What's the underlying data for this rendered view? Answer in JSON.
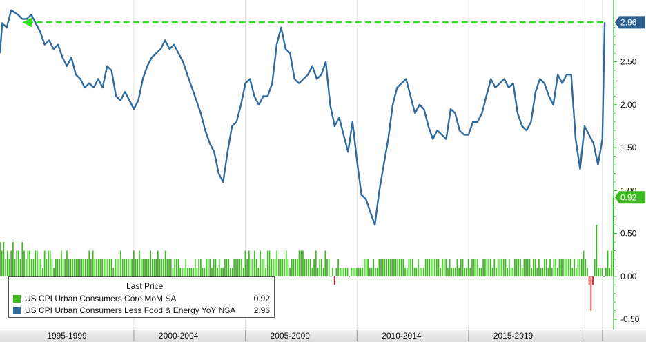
{
  "chart_data": {
    "type": "line+bar",
    "y_axis": {
      "ticks": [
        "-0.50",
        "0.00",
        "0.50",
        "1.00",
        "1.50",
        "2.00",
        "2.50"
      ],
      "tick_values": [
        -0.5,
        0.0,
        0.5,
        1.0,
        1.5,
        2.0,
        2.5
      ],
      "range": [
        -0.62,
        3.22
      ]
    },
    "x_axis": {
      "labels": [
        "1995-1999",
        "2000-2004",
        "2005-2009",
        "2010-2014",
        "2015-2019"
      ],
      "range": [
        1994.0,
        2021.5
      ]
    },
    "legend": {
      "header": "Last Price",
      "placement": "bottom-left"
    },
    "series": [
      {
        "name": "US CPI Urban Consumers Core MoM SA",
        "type": "bar",
        "color": "#3cbc1e",
        "last_value": "0.92",
        "start": 1994.0,
        "step": 0.0833,
        "values": [
          0.4,
          0.3,
          0.4,
          0.2,
          0.3,
          0.2,
          0.3,
          0.4,
          0.2,
          0.3,
          0.3,
          0.2,
          0.4,
          0.3,
          0.2,
          0.3,
          0.3,
          0.2,
          0.2,
          0.3,
          0.3,
          0.2,
          0.2,
          0.1,
          0.3,
          0.2,
          0.3,
          0.3,
          0.2,
          0.1,
          0.2,
          0.2,
          0.2,
          0.3,
          0.2,
          0.2,
          0.3,
          0.2,
          0.2,
          0.2,
          0.2,
          0.2,
          0.2,
          0.2,
          0.2,
          0.2,
          0.2,
          0.2,
          0.3,
          0.2,
          0.3,
          0.2,
          0.2,
          0.2,
          0.2,
          0.2,
          0.2,
          0.2,
          0.2,
          0.2,
          0.2,
          0.1,
          0.2,
          0.2,
          0.2,
          0.3,
          0.2,
          0.2,
          0.2,
          0.2,
          0.2,
          0.2,
          0.3,
          0.2,
          0.2,
          0.3,
          0.2,
          0.2,
          0.2,
          0.2,
          0.2,
          0.3,
          0.2,
          0.2,
          0.2,
          0.3,
          0.2,
          0.2,
          0.2,
          0.3,
          0.2,
          0.2,
          0.2,
          0.1,
          0.2,
          0.2,
          0.2,
          0.1,
          0.1,
          0.1,
          0.2,
          0.1,
          0.1,
          0.1,
          0.1,
          0.2,
          0.1,
          0.2,
          0.2,
          0.1,
          0.1,
          0.2,
          0.2,
          0.2,
          0.1,
          0.2,
          0.2,
          0.1,
          0.2,
          0.1,
          0.1,
          0.2,
          0.2,
          0.2,
          0.1,
          0.1,
          0.2,
          0.2,
          0.2,
          0.2,
          0.2,
          0.1,
          0.3,
          0.2,
          0.3,
          0.2,
          0.2,
          0.3,
          0.2,
          0.1,
          0.3,
          0.2,
          0.2,
          0.1,
          0.3,
          0.3,
          0.2,
          0.2,
          0.2,
          0.3,
          0.2,
          0.2,
          0.2,
          0.2,
          0.3,
          0.2,
          0.1,
          0.2,
          0.2,
          0.2,
          0.2,
          0.3,
          0.3,
          0.3,
          0.2,
          0.2,
          0.2,
          0.2,
          0.1,
          0.2,
          0.3,
          0.1,
          0.2,
          0.2,
          0.1,
          0.3,
          0.2,
          0.2,
          0.0,
          0.1,
          -0.1,
          0.1,
          0.2,
          0.1,
          0.1,
          0.1,
          0.1,
          0.1,
          0.0,
          0.1,
          0.1,
          0.1,
          0.1,
          0.1,
          0.1,
          0.1,
          0.2,
          0.2,
          0.2,
          0.1,
          0.1,
          0.2,
          0.1,
          0.1,
          0.2,
          0.2,
          0.2,
          0.2,
          0.2,
          0.2,
          0.2,
          0.2,
          0.2,
          0.2,
          0.2,
          0.2,
          0.2,
          0.2,
          0.1,
          0.1,
          0.2,
          0.2,
          0.2,
          0.1,
          0.1,
          0.2,
          0.1,
          0.1,
          0.1,
          0.2,
          0.2,
          0.2,
          0.2,
          0.2,
          0.2,
          0.2,
          0.2,
          0.1,
          0.2,
          0.2,
          0.2,
          0.1,
          0.2,
          0.1,
          0.1,
          0.1,
          0.2,
          0.1,
          0.2,
          0.2,
          0.1,
          0.1,
          0.2,
          0.1,
          0.2,
          0.2,
          0.2,
          0.2,
          0.1,
          0.1,
          0.2,
          0.2,
          0.2,
          0.2,
          0.2,
          0.1,
          0.2,
          0.1,
          0.2,
          0.2,
          0.2,
          0.2,
          0.2,
          0.1,
          0.2,
          0.1,
          0.1,
          0.2,
          0.2,
          0.2,
          0.2,
          0.1,
          0.2,
          0.2,
          0.2,
          0.2,
          0.1,
          0.2,
          0.2,
          0.1,
          0.2,
          0.1,
          0.1,
          0.2,
          0.2,
          0.1,
          0.2,
          0.1,
          0.2,
          0.2,
          0.1,
          0.2,
          0.2,
          0.2,
          0.2,
          0.2,
          0.2,
          0.2,
          0.1,
          0.2,
          0.1,
          0.2,
          0.2,
          0.2,
          0.3,
          0.2,
          0.1,
          -0.1,
          -0.4,
          -0.1,
          0.2,
          0.6,
          0.1,
          0.1,
          0.1,
          0.0,
          0.1,
          0.3,
          0.1,
          0.3,
          0.92
        ]
      },
      {
        "name": "US CPI Urban Consumers Less Food & Energy YoY NSA",
        "type": "line",
        "color": "#2f6a9e",
        "last_value": "2.96",
        "points": [
          [
            1994.0,
            2.6
          ],
          [
            1994.1,
            2.95
          ],
          [
            1994.3,
            2.9
          ],
          [
            1994.5,
            3.1
          ],
          [
            1994.8,
            3.05
          ],
          [
            1995.0,
            3.0
          ],
          [
            1995.2,
            3.0
          ],
          [
            1995.4,
            3.05
          ],
          [
            1995.6,
            2.95
          ],
          [
            1995.8,
            2.85
          ],
          [
            1996.0,
            2.7
          ],
          [
            1996.2,
            2.75
          ],
          [
            1996.4,
            2.65
          ],
          [
            1996.6,
            2.7
          ],
          [
            1996.8,
            2.55
          ],
          [
            1997.0,
            2.45
          ],
          [
            1997.2,
            2.55
          ],
          [
            1997.4,
            2.35
          ],
          [
            1997.6,
            2.3
          ],
          [
            1997.8,
            2.2
          ],
          [
            1998.0,
            2.25
          ],
          [
            1998.2,
            2.2
          ],
          [
            1998.4,
            2.3
          ],
          [
            1998.6,
            2.2
          ],
          [
            1998.8,
            2.45
          ],
          [
            1999.0,
            2.4
          ],
          [
            1999.2,
            2.1
          ],
          [
            1999.4,
            2.05
          ],
          [
            1999.6,
            2.15
          ],
          [
            1999.8,
            2.05
          ],
          [
            2000.0,
            1.95
          ],
          [
            2000.2,
            2.05
          ],
          [
            2000.4,
            2.3
          ],
          [
            2000.6,
            2.45
          ],
          [
            2000.8,
            2.55
          ],
          [
            2001.0,
            2.6
          ],
          [
            2001.2,
            2.65
          ],
          [
            2001.4,
            2.75
          ],
          [
            2001.6,
            2.65
          ],
          [
            2001.8,
            2.7
          ],
          [
            2002.0,
            2.6
          ],
          [
            2002.2,
            2.5
          ],
          [
            2002.4,
            2.35
          ],
          [
            2002.6,
            2.2
          ],
          [
            2002.8,
            2.05
          ],
          [
            2003.0,
            1.9
          ],
          [
            2003.2,
            1.7
          ],
          [
            2003.4,
            1.55
          ],
          [
            2003.6,
            1.45
          ],
          [
            2003.8,
            1.2
          ],
          [
            2004.0,
            1.1
          ],
          [
            2004.2,
            1.45
          ],
          [
            2004.4,
            1.75
          ],
          [
            2004.6,
            1.8
          ],
          [
            2004.8,
            2.0
          ],
          [
            2005.0,
            2.25
          ],
          [
            2005.2,
            2.3
          ],
          [
            2005.4,
            2.1
          ],
          [
            2005.6,
            2.0
          ],
          [
            2005.8,
            2.1
          ],
          [
            2006.0,
            2.1
          ],
          [
            2006.2,
            2.25
          ],
          [
            2006.4,
            2.7
          ],
          [
            2006.6,
            2.9
          ],
          [
            2006.8,
            2.65
          ],
          [
            2007.0,
            2.6
          ],
          [
            2007.2,
            2.3
          ],
          [
            2007.4,
            2.25
          ],
          [
            2007.6,
            2.3
          ],
          [
            2007.8,
            2.35
          ],
          [
            2008.0,
            2.45
          ],
          [
            2008.2,
            2.3
          ],
          [
            2008.4,
            2.35
          ],
          [
            2008.6,
            2.5
          ],
          [
            2008.8,
            2.0
          ],
          [
            2009.0,
            1.75
          ],
          [
            2009.2,
            1.85
          ],
          [
            2009.4,
            1.65
          ],
          [
            2009.6,
            1.45
          ],
          [
            2009.8,
            1.8
          ],
          [
            2010.0,
            1.35
          ],
          [
            2010.2,
            0.95
          ],
          [
            2010.4,
            0.9
          ],
          [
            2010.6,
            0.75
          ],
          [
            2010.8,
            0.6
          ],
          [
            2011.0,
            1.0
          ],
          [
            2011.2,
            1.3
          ],
          [
            2011.4,
            1.6
          ],
          [
            2011.6,
            2.0
          ],
          [
            2011.8,
            2.2
          ],
          [
            2012.0,
            2.25
          ],
          [
            2012.2,
            2.3
          ],
          [
            2012.4,
            2.1
          ],
          [
            2012.6,
            1.9
          ],
          [
            2012.8,
            2.0
          ],
          [
            2013.0,
            1.95
          ],
          [
            2013.2,
            1.75
          ],
          [
            2013.4,
            1.6
          ],
          [
            2013.6,
            1.7
          ],
          [
            2013.8,
            1.65
          ],
          [
            2014.0,
            1.6
          ],
          [
            2014.2,
            1.95
          ],
          [
            2014.4,
            1.9
          ],
          [
            2014.6,
            1.7
          ],
          [
            2014.8,
            1.65
          ],
          [
            2015.0,
            1.65
          ],
          [
            2015.2,
            1.8
          ],
          [
            2015.4,
            1.8
          ],
          [
            2015.6,
            1.9
          ],
          [
            2015.8,
            2.1
          ],
          [
            2016.0,
            2.3
          ],
          [
            2016.2,
            2.2
          ],
          [
            2016.4,
            2.25
          ],
          [
            2016.6,
            2.3
          ],
          [
            2016.8,
            2.2
          ],
          [
            2017.0,
            2.25
          ],
          [
            2017.2,
            1.9
          ],
          [
            2017.4,
            1.75
          ],
          [
            2017.6,
            1.7
          ],
          [
            2017.8,
            1.8
          ],
          [
            2018.0,
            2.15
          ],
          [
            2018.2,
            2.3
          ],
          [
            2018.4,
            2.25
          ],
          [
            2018.6,
            2.1
          ],
          [
            2018.8,
            2.0
          ],
          [
            2019.0,
            2.35
          ],
          [
            2019.2,
            2.25
          ],
          [
            2019.4,
            2.35
          ],
          [
            2019.6,
            2.35
          ],
          [
            2019.8,
            1.6
          ],
          [
            2020.0,
            1.25
          ],
          [
            2020.2,
            1.75
          ],
          [
            2020.4,
            1.65
          ],
          [
            2020.6,
            1.55
          ],
          [
            2020.8,
            1.3
          ],
          [
            2021.0,
            1.6
          ],
          [
            2021.1,
            2.96
          ]
        ]
      }
    ],
    "reference_line": {
      "value": 2.96,
      "color": "#33dd22",
      "style": "dashed-arrow"
    }
  }
}
